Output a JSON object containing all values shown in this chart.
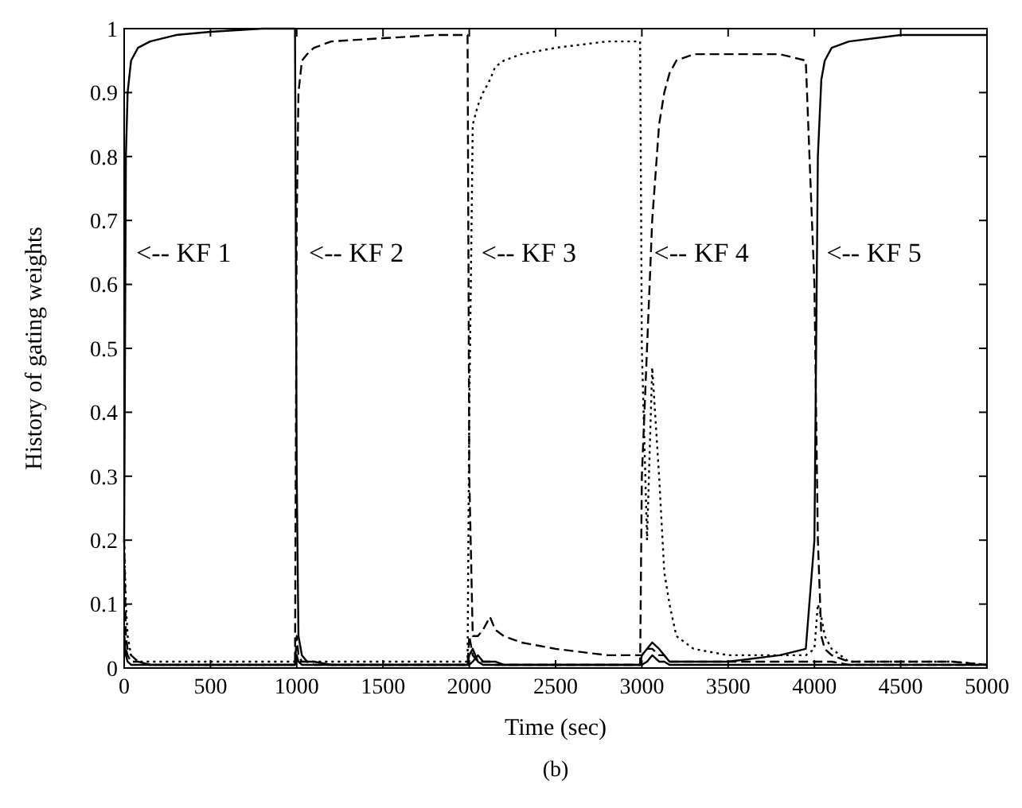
{
  "chart_data": {
    "type": "line",
    "xlabel": "Time (sec)",
    "ylabel": "History of gating weights",
    "x": [
      0,
      10,
      20,
      40,
      80,
      150,
      300,
      500,
      800,
      990,
      1000,
      1010,
      1030,
      1060,
      1100,
      1200,
      1500,
      1800,
      1990,
      2000,
      2020,
      2050,
      2080,
      2120,
      2150,
      2200,
      2300,
      2500,
      2800,
      2990,
      3000,
      3030,
      3060,
      3100,
      3130,
      3160,
      3200,
      3300,
      3500,
      3800,
      3950,
      4000,
      4020,
      4040,
      4060,
      4100,
      4200,
      4500,
      4800,
      5000
    ],
    "xlim": [
      0,
      5000
    ],
    "xticks": [
      0,
      500,
      1000,
      1500,
      2000,
      2500,
      3000,
      3500,
      4000,
      4500,
      5000
    ],
    "ylim": [
      0,
      1
    ],
    "yticks": [
      0,
      0.1,
      0.2,
      0.3,
      0.4,
      0.5,
      0.6,
      0.7,
      0.8,
      0.9,
      1
    ],
    "series": [
      {
        "color": "#000000",
        "line_style": "solid",
        "values": [
          0.2,
          0.8,
          0.9,
          0.95,
          0.97,
          0.98,
          0.99,
          0.995,
          1,
          1,
          0.3,
          0.05,
          0.02,
          0.01,
          0.01,
          0.005,
          0.005,
          0.005,
          0.005,
          0.005,
          0.01,
          0.02,
          0.01,
          0.01,
          0.01,
          0.005,
          0.005,
          0.005,
          0.005,
          0.005,
          0.005,
          0.01,
          0.02,
          0.01,
          0.01,
          0.005,
          0.005,
          0.005,
          0.005,
          0.005,
          0.005,
          0.005,
          0.005,
          0.005,
          0.005,
          0.005,
          0.005,
          0.005,
          0.005,
          0.005
        ]
      },
      {
        "color": "#000000",
        "line_style": "dashed",
        "values": [
          0.2,
          0.05,
          0.03,
          0.02,
          0.01,
          0.005,
          0.005,
          0.005,
          0.005,
          0.005,
          0.7,
          0.9,
          0.95,
          0.96,
          0.97,
          0.98,
          0.985,
          0.99,
          0.99,
          0.3,
          0.05,
          0.05,
          0.06,
          0.08,
          0.06,
          0.05,
          0.04,
          0.03,
          0.02,
          0.02,
          0.02,
          0.03,
          0.03,
          0.02,
          0.02,
          0.01,
          0.01,
          0.01,
          0.01,
          0.01,
          0.01,
          0.01,
          0.01,
          0.01,
          0.01,
          0.01,
          0.005,
          0.005,
          0.005,
          0.005
        ]
      },
      {
        "color": "#000000",
        "line_style": "dotted",
        "values": [
          0.2,
          0.1,
          0.05,
          0.02,
          0.01,
          0.01,
          0.01,
          0.01,
          0.01,
          0.01,
          0.01,
          0.01,
          0.01,
          0.01,
          0.01,
          0.01,
          0.01,
          0.01,
          0.01,
          0.4,
          0.85,
          0.88,
          0.9,
          0.92,
          0.94,
          0.95,
          0.96,
          0.97,
          0.98,
          0.98,
          0.5,
          0.2,
          0.47,
          0.3,
          0.15,
          0.1,
          0.05,
          0.03,
          0.02,
          0.02,
          0.02,
          0.03,
          0.1,
          0.08,
          0.05,
          0.03,
          0.01,
          0.01,
          0.01,
          0.005
        ]
      },
      {
        "color": "#000000",
        "line_style": "dashed",
        "values": [
          0.05,
          0.03,
          0.02,
          0.01,
          0.01,
          0.005,
          0.005,
          0.005,
          0.005,
          0.005,
          0.05,
          0.02,
          0.01,
          0.01,
          0.005,
          0.005,
          0.005,
          0.005,
          0.005,
          0.05,
          0.02,
          0.01,
          0.01,
          0.01,
          0.005,
          0.005,
          0.005,
          0.005,
          0.005,
          0.005,
          0.3,
          0.5,
          0.7,
          0.85,
          0.9,
          0.93,
          0.95,
          0.96,
          0.96,
          0.96,
          0.95,
          0.6,
          0.2,
          0.05,
          0.03,
          0.02,
          0.01,
          0.01,
          0.01,
          0.005
        ]
      },
      {
        "color": "#000000",
        "line_style": "solid",
        "values": [
          0.05,
          0.02,
          0.01,
          0.005,
          0.005,
          0.005,
          0.005,
          0.005,
          0.005,
          0.005,
          0.02,
          0.01,
          0.005,
          0.005,
          0.005,
          0.005,
          0.005,
          0.005,
          0.005,
          0.02,
          0.03,
          0.01,
          0.005,
          0.005,
          0.005,
          0.005,
          0.005,
          0.005,
          0.005,
          0.005,
          0.02,
          0.03,
          0.04,
          0.03,
          0.02,
          0.01,
          0.01,
          0.01,
          0.01,
          0.02,
          0.03,
          0.2,
          0.8,
          0.92,
          0.95,
          0.97,
          0.98,
          0.99,
          0.99,
          0.99
        ]
      }
    ],
    "annotations": [
      "<-- KF 1",
      "<-- KF 2",
      "<-- KF 3",
      "<-- KF 4",
      "<-- KF 5",
      "(b)"
    ]
  }
}
